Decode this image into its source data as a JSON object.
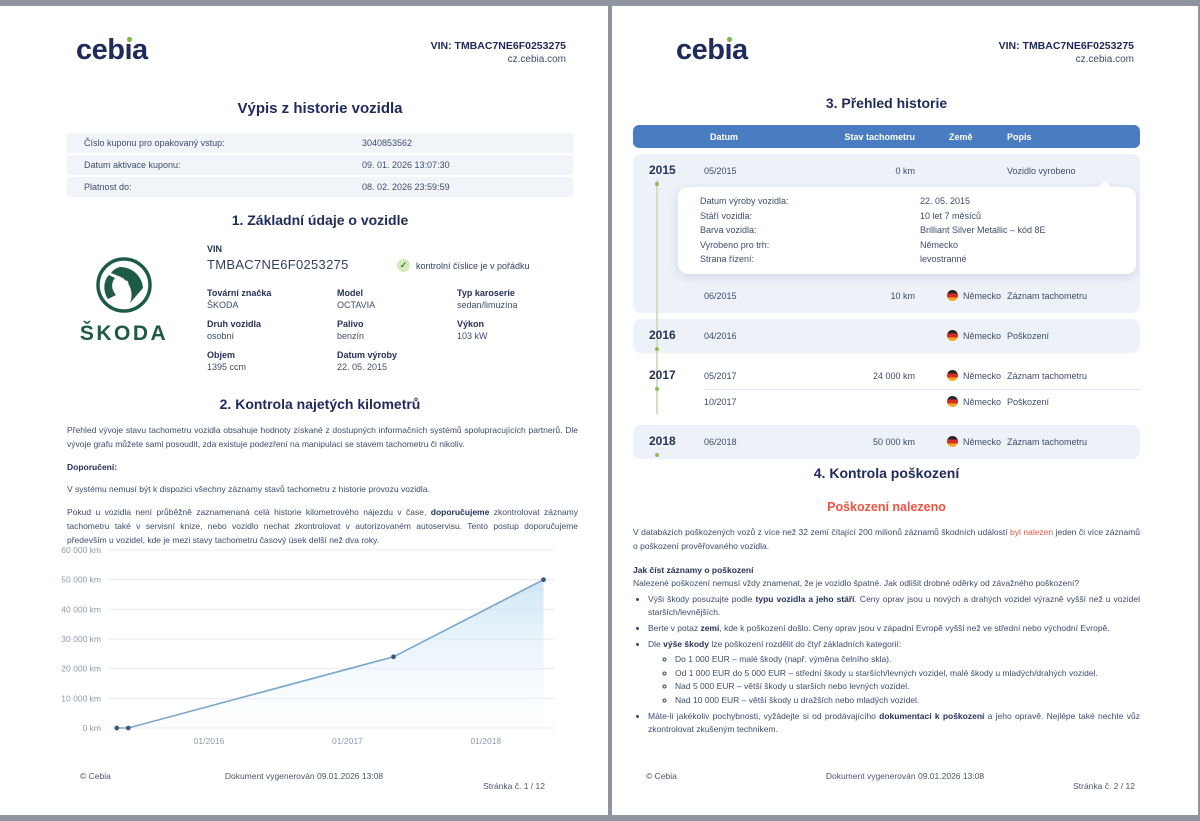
{
  "colors": {
    "navy": "#212b5b",
    "body_text": "#3d4c6b",
    "accent_green": "#7ab648",
    "skoda_green": "#1e5b45",
    "table_header_blue": "#4a7cc2",
    "row_bg": "#edf2f9",
    "status_red": "#ee5340",
    "chart_line": "#7ba6cc",
    "flag_black": "#262626",
    "flag_red": "#d22f27",
    "flag_gold": "#f5a623"
  },
  "header": {
    "logo_name": "cebia",
    "logo_pre": "ceb",
    "logo_i": "ı",
    "logo_post": "a",
    "vin": "VIN: TMBAC7NE6F0253275",
    "site": "cz.cebia.com"
  },
  "page1": {
    "title": "Výpis z historie vozidla",
    "coupon": [
      {
        "label": "Číslo kuponu pro opakovaný vstup:",
        "value": "3040853562"
      },
      {
        "label": "Datum aktivace kuponu:",
        "value": "09. 01. 2026 13:07:30"
      },
      {
        "label": "Platnost do:",
        "value": "08. 02. 2026 23:59:59"
      }
    ],
    "s1": {
      "title": "1. Základní údaje o vozidle",
      "brand_logo_text": "ŠKODA",
      "vin_label": "VIN",
      "vin_value": "TMBAC7NE6F0253275",
      "vin_check": "kontrolní číslice je v pořádku",
      "fields": [
        {
          "label": "Tovární značka",
          "value": "ŠKODA"
        },
        {
          "label": "Model",
          "value": "OCTAVIA"
        },
        {
          "label": "Typ karoserie",
          "value": "sedan/limuzína"
        },
        {
          "label": "Druh vozidla",
          "value": "osobní"
        },
        {
          "label": "Palivo",
          "value": "benzín"
        },
        {
          "label": "Výkon",
          "value": "103 kW"
        },
        {
          "label": "Objem",
          "value": "1395 ccm"
        },
        {
          "label": "Datum výroby",
          "value": "22. 05. 2015"
        }
      ]
    },
    "s2": {
      "title": "2. Kontrola najetých kilometrů",
      "p1": "Přehled vývoje stavu tachometru vozidla obsahuje hodnoty získané z dostupných informačních systémů spolupracujících partnerů. Dle vývoje grafu můžete sami posoudit, zda existuje podezření na manipulaci se stavem tachometru či nikoliv.",
      "p2": "Doporučení:",
      "p3": "V systému nemusí být k dispozici všechny záznamy stavů tachometru z historie provozu vozidla.",
      "p4_html": "Pokud u vozidla není průběžně zaznamenaná celá historie kilometrového nájezdu v čase, <b>doporučujeme</b> zkontrolovat záznamy tachometru také v servisní knize, nebo vozidlo nechat zkontrolovat v autorizovaném autoservisu. Tento postup doporučujeme především u vozidel, kde je mezi stavy tachometru časový úsek delší než dva roky."
    },
    "footer": {
      "copyright": "© Cebia",
      "generated": "Dokument vygenerován 09.01.2026 13:08",
      "page": "Stránka č. 1 / 12"
    }
  },
  "page2": {
    "s3": {
      "title": "3. Přehled historie",
      "columns": [
        "Datum",
        "Stav tachometru",
        "Země",
        "Popis"
      ],
      "card": [
        {
          "label": "Datum výroby vozidla:",
          "value": "22. 05. 2015"
        },
        {
          "label": "Stáří vozidla:",
          "value": "10 let 7 měsíců"
        },
        {
          "label": "Barva vozidla:",
          "value": "Brilliant Silver Metallic – kód 8E"
        },
        {
          "label": "Vyrobeno pro trh:",
          "value": "Německo"
        },
        {
          "label": "Strana řízení:",
          "value": "levostranné"
        }
      ],
      "groups": [
        {
          "year": "2015",
          "rows": [
            {
              "date": "05/2015",
              "odo": "0 km",
              "country": "",
              "desc": "Vozidlo vyrobeno"
            },
            {
              "date": "06/2015",
              "odo": "10 km",
              "country": "Německo",
              "desc": "Záznam tachometru"
            }
          ]
        },
        {
          "year": "2016",
          "rows": [
            {
              "date": "04/2016",
              "odo": "",
              "country": "Německo",
              "desc": "Poškození"
            }
          ]
        },
        {
          "year": "2017",
          "rows": [
            {
              "date": "05/2017",
              "odo": "24 000 km",
              "country": "Německo",
              "desc": "Záznam tachometru"
            },
            {
              "date": "10/2017",
              "odo": "",
              "country": "Německo",
              "desc": "Poškození"
            }
          ]
        },
        {
          "year": "2018",
          "rows": [
            {
              "date": "06/2018",
              "odo": "50 000 km",
              "country": "Německo",
              "desc": "Záznam tachometru"
            }
          ]
        }
      ]
    },
    "s4": {
      "title": "4. Kontrola poškození",
      "status": "Poškození nalezeno",
      "intro_html": "V databázích poškozených vozů z více než 32 zemí čítající 200 milionů záznamů škodních událostí <span class=\"red\">byl nalezen</span> jeden či více záznamů o poškození prověřovaného vozidla.",
      "how_title": "Jak číst záznamy o poškození",
      "how_text": "Nalezené poškození nemusí vždy znamenat, že je vozidlo špatné. Jak odlišit drobné oděrky od závažného poškození?",
      "bullet1_html": "Výši škody posuzujte podle <b>typu vozidla a jeho stáří</b>. Ceny oprav jsou u nových a drahých vozidel výrazně vyšší než u vozidel starších/levnějších.",
      "bullet2_html": "Berte v potaz <b>zemi</b>, kde k poškození došlo. Ceny oprav jsou v západní Evropě vyšší než ve střední nebo východní Evropě.",
      "bullet3_html": "Dle <b>výše škody</b> lze poškození rozdělit do čtyř základních kategorií:",
      "sub1": "Do 1 000 EUR – malé škody (např. výměna čelního skla).",
      "sub2": "Od 1 000 EUR do 5 000 EUR – střední škody u starších/levných vozidel, malé škody u mladých/drahých vozidel.",
      "sub3": "Nad 5 000 EUR – větší škody u starších nebo levných vozidel.",
      "sub4": "Nad 10 000 EUR – větší škody u dražších nebo mladých vozidel.",
      "bullet4_html": "Máte-li jakékoliv pochybnosti, vyžádejte si od prodávajícího <b>dokumentaci k poškození</b> a jeho opravě. Nejlépe také nechte vůz zkontrolovat zkušeným technikem."
    },
    "footer": {
      "copyright": "© Cebia",
      "generated": "Dokument vygenerován 09.01.2026 13:08",
      "page": "Stránka č. 2 / 12"
    }
  },
  "chart_data": {
    "type": "area",
    "title": "",
    "xlabel": "",
    "ylabel": "km",
    "x": [
      "05/2015",
      "06/2015",
      "05/2017",
      "06/2018"
    ],
    "values": [
      0,
      10,
      24000,
      50000
    ],
    "x_ticks": [
      "01/2016",
      "01/2017",
      "01/2018"
    ],
    "y_ticks": [
      "0 km",
      "10 000 km",
      "20 000 km",
      "30 000 km",
      "40 000 km",
      "50 000 km",
      "60 000 km"
    ],
    "ylim": [
      0,
      60000
    ],
    "xlim": [
      2015.27,
      2018.5
    ],
    "grid": true,
    "legend": false
  }
}
